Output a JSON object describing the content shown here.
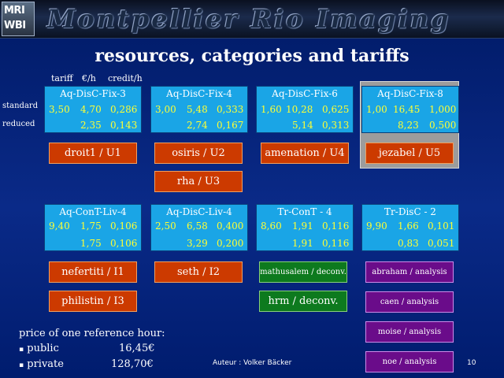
{
  "banner": {
    "logo_line1": "MRI",
    "logo_line2": "WBI",
    "title": "Montpellier Rio Imaging"
  },
  "slide_title": "resources, categories and tariffs",
  "column_headers": {
    "tariff": "tariff",
    "euro_h": "€/h",
    "credit_h": "credit/h"
  },
  "row_labels": {
    "standard": "standard",
    "reduced": "reduced"
  },
  "cards": [
    {
      "name": "Aq-DisC-Fix-3",
      "tariff": "3,50",
      "std_eur": "4,70",
      "std_cr": "0,286",
      "red_eur": "2,35",
      "red_cr": "0,143"
    },
    {
      "name": "Aq-DisC-Fix-4",
      "tariff": "3,00",
      "std_eur": "5,48",
      "std_cr": "0,333",
      "red_eur": "2,74",
      "red_cr": "0,167"
    },
    {
      "name": "Aq-DisC-Fix-6",
      "tariff": "1,60",
      "std_eur": "10,28",
      "std_cr": "0,625",
      "red_eur": "5,14",
      "red_cr": "0,313"
    },
    {
      "name": "Aq-DisC-Fix-8",
      "tariff": "1,00",
      "std_eur": "16,45",
      "std_cr": "1,000",
      "red_eur": "8,23",
      "red_cr": "0,500"
    },
    {
      "name": "Aq-ConT-Liv-4",
      "tariff": "9,40",
      "std_eur": "1,75",
      "std_cr": "0,106",
      "red_eur": "1,75",
      "red_cr": "0,106"
    },
    {
      "name": "Aq-DisC-Liv-4",
      "tariff": "2,50",
      "std_eur": "6,58",
      "std_cr": "0,400",
      "red_eur": "3,29",
      "red_cr": "0,200"
    },
    {
      "name": "Tr-ConT - 4",
      "tariff": "8,60",
      "std_eur": "1,91",
      "std_cr": "0,116",
      "red_eur": "1,91",
      "red_cr": "0,116"
    },
    {
      "name": "Tr-DisC - 2",
      "tariff": "9,90",
      "std_eur": "1,66",
      "std_cr": "0,101",
      "red_eur": "0,83",
      "red_cr": "0,051"
    }
  ],
  "resources": {
    "droit1": "droit1 / U1",
    "osiris": "osiris / U2",
    "amenation": "amenation / U4",
    "jezabel": "jezabel / U5",
    "rha": "rha / U3",
    "nefertiti": "nefertiti / I1",
    "seth": "seth / I2",
    "mathusalem": "mathusalem / deconv.",
    "abraham": "abraham / analysis",
    "philistin": "philistin / I3",
    "hrm": "hrm / deconv.",
    "caen": "caen / analysis",
    "moise": "moise / analysis",
    "noe": "noe / analysis"
  },
  "prices": {
    "heading": "price of one reference hour:",
    "public_label": "public",
    "public_value": "16,45€",
    "private_label": "private",
    "private_value": "128,70€",
    "bullet": "▪"
  },
  "footer": {
    "author": "Auteur : Volker Bäcker",
    "page": "10"
  }
}
